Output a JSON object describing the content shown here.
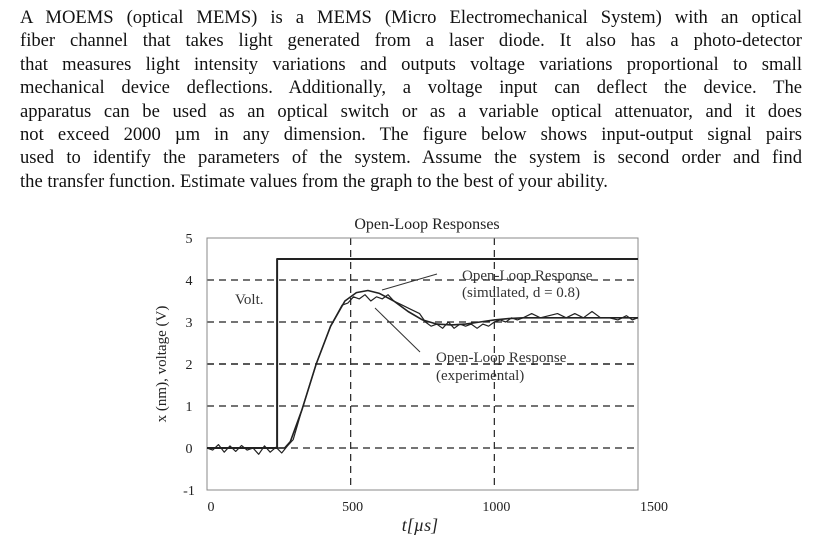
{
  "paragraph": {
    "lines": [
      "A MOEMS (optical MEMS) is a MEMS (Micro Electromechanical System) with an optical",
      "fiber channel that takes light generated from a laser diode.  It also has a photo-detector",
      "that measures light intensity variations and outputs voltage variations proportional to small",
      "mechanical device deflections.  Additionally, a voltage input can deflect the device.  The",
      "apparatus can be used as an optical switch or as a variable optical attenuator, and it does",
      "not exceed 2000 µm in any dimension.  The figure below shows input-output signal pairs",
      "used to identify the parameters of the system.  Assume the system is second order and find",
      "the transfer function. Estimate values from the graph to the best of your ability."
    ]
  },
  "chart_data": {
    "type": "line",
    "title": "Open-Loop Responses",
    "xlabel": "t[µs]",
    "ylabel": "x (nm), voltage (V)",
    "xlim": [
      0,
      1500
    ],
    "ylim": [
      -1,
      5
    ],
    "xticks": [
      "0",
      "500",
      "1000",
      "1500"
    ],
    "yticks": [
      "-1",
      "0",
      "1",
      "2",
      "3",
      "4",
      "5"
    ],
    "grid": "dashed",
    "annotations": [
      "Volt.",
      "Open-Loop Response",
      "(simulated, d = 0.8)",
      "Open-Loop Response",
      "(experimental)"
    ],
    "series": [
      {
        "name": "Volt.",
        "x": [
          0,
          244,
          244,
          1500
        ],
        "y": [
          0,
          0,
          4.5,
          4.5
        ]
      },
      {
        "name": "Open-Loop Response (simulated, d = 0.8)",
        "x": [
          0,
          270,
          290,
          330,
          380,
          430,
          480,
          520,
          560,
          600,
          650,
          700,
          750,
          800,
          850,
          900,
          950,
          1000,
          1050,
          1100,
          1200,
          1300,
          1400,
          1500
        ],
        "y": [
          0,
          0,
          0.15,
          0.9,
          2.0,
          2.9,
          3.5,
          3.7,
          3.75,
          3.68,
          3.5,
          3.25,
          3.05,
          2.95,
          2.93,
          2.95,
          3.0,
          3.05,
          3.08,
          3.1,
          3.1,
          3.1,
          3.1,
          3.1
        ]
      },
      {
        "name": "Open-Loop Response (experimental)",
        "x": [
          0,
          20,
          40,
          60,
          80,
          100,
          120,
          140,
          160,
          180,
          200,
          220,
          240,
          260,
          280,
          300,
          330,
          380,
          430,
          470,
          490,
          510,
          530,
          550,
          570,
          590,
          610,
          630,
          650,
          680,
          710,
          740,
          760,
          780,
          800,
          820,
          840,
          860,
          880,
          900,
          920,
          940,
          960,
          980,
          1000,
          1020,
          1040,
          1060,
          1080,
          1100,
          1130,
          1160,
          1190,
          1220,
          1250,
          1280,
          1310,
          1340,
          1370,
          1400,
          1430,
          1460,
          1480,
          1500
        ],
        "y": [
          0,
          -0.05,
          0.08,
          -0.1,
          0.05,
          -0.08,
          0.06,
          -0.05,
          0.0,
          -0.15,
          0.05,
          -0.1,
          0.02,
          -0.12,
          0.05,
          0.2,
          0.9,
          2.0,
          2.9,
          3.4,
          3.45,
          3.6,
          3.55,
          3.65,
          3.5,
          3.6,
          3.55,
          3.65,
          3.5,
          3.4,
          3.3,
          3.2,
          3.0,
          2.9,
          2.95,
          2.85,
          3.0,
          2.85,
          2.95,
          2.9,
          2.95,
          2.85,
          2.95,
          2.9,
          3.0,
          3.05,
          3.0,
          3.1,
          3.05,
          3.1,
          3.2,
          3.1,
          3.15,
          3.2,
          3.1,
          3.2,
          3.1,
          3.25,
          3.1,
          3.1,
          3.05,
          3.15,
          3.05,
          3.1
        ]
      }
    ]
  }
}
